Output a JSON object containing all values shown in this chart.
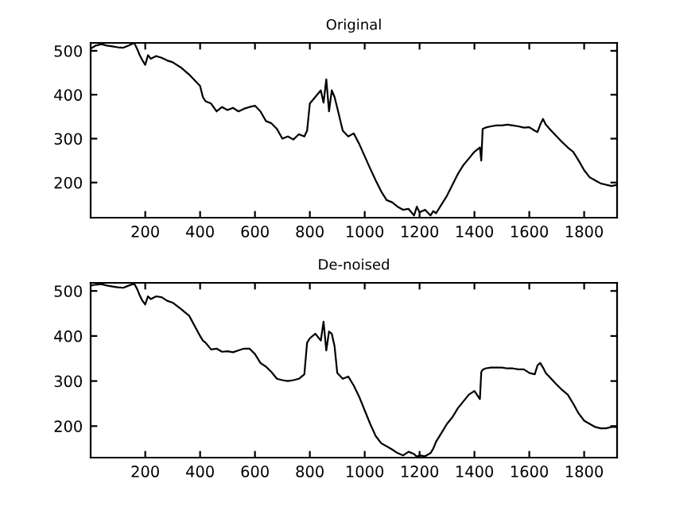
{
  "chart_data": [
    {
      "type": "line",
      "title": "Original",
      "xlim": [
        1,
        1920
      ],
      "ylim": [
        120,
        518
      ],
      "xticks": [
        200,
        400,
        600,
        800,
        1000,
        1200,
        1400,
        1600,
        1800
      ],
      "yticks": [
        200,
        300,
        400,
        500
      ],
      "grid": false,
      "legend": false,
      "marker": "none",
      "line_style": "solid",
      "series": [
        {
          "color": "#000000",
          "x": [
            1,
            20,
            40,
            60,
            80,
            100,
            120,
            140,
            160,
            170,
            180,
            190,
            200,
            210,
            220,
            240,
            260,
            280,
            300,
            330,
            360,
            400,
            410,
            420,
            440,
            460,
            480,
            500,
            520,
            540,
            560,
            580,
            600,
            620,
            640,
            660,
            680,
            700,
            720,
            740,
            760,
            780,
            790,
            800,
            820,
            840,
            850,
            860,
            870,
            880,
            890,
            900,
            920,
            940,
            960,
            980,
            1000,
            1020,
            1040,
            1060,
            1080,
            1100,
            1120,
            1140,
            1160,
            1180,
            1190,
            1200,
            1220,
            1240,
            1250,
            1260,
            1280,
            1300,
            1320,
            1340,
            1360,
            1380,
            1400,
            1420,
            1425,
            1430,
            1440,
            1460,
            1480,
            1500,
            1520,
            1540,
            1560,
            1580,
            1600,
            1620,
            1630,
            1640,
            1650,
            1660,
            1680,
            1700,
            1720,
            1740,
            1760,
            1780,
            1800,
            1820,
            1840,
            1860,
            1880,
            1900,
            1920
          ],
          "values": [
            505,
            512,
            515,
            512,
            510,
            508,
            507,
            512,
            518,
            505,
            490,
            478,
            468,
            490,
            482,
            488,
            484,
            478,
            474,
            462,
            446,
            420,
            395,
            385,
            380,
            362,
            372,
            365,
            370,
            362,
            368,
            372,
            375,
            362,
            340,
            335,
            322,
            300,
            305,
            298,
            310,
            305,
            318,
            380,
            395,
            410,
            382,
            435,
            362,
            410,
            395,
            370,
            318,
            305,
            312,
            288,
            260,
            232,
            205,
            180,
            160,
            155,
            145,
            138,
            140,
            125,
            145,
            132,
            138,
            125,
            135,
            130,
            150,
            170,
            195,
            220,
            240,
            255,
            270,
            280,
            250,
            322,
            325,
            328,
            330,
            330,
            332,
            330,
            328,
            325,
            326,
            318,
            315,
            332,
            345,
            332,
            318,
            305,
            292,
            280,
            270,
            250,
            228,
            212,
            205,
            198,
            195,
            192,
            195
          ]
        }
      ]
    },
    {
      "type": "line",
      "title": "De-noised",
      "xlim": [
        1,
        1920
      ],
      "ylim": [
        130,
        518
      ],
      "xticks": [
        200,
        400,
        600,
        800,
        1000,
        1200,
        1400,
        1600,
        1800
      ],
      "yticks": [
        200,
        300,
        400,
        500
      ],
      "grid": false,
      "legend": false,
      "marker": "none",
      "line_style": "solid",
      "series": [
        {
          "color": "#000000",
          "x": [
            1,
            20,
            40,
            60,
            80,
            100,
            120,
            140,
            160,
            170,
            180,
            190,
            200,
            210,
            220,
            240,
            260,
            280,
            300,
            330,
            360,
            400,
            410,
            420,
            440,
            460,
            480,
            500,
            520,
            540,
            560,
            580,
            600,
            620,
            640,
            660,
            680,
            700,
            720,
            740,
            760,
            780,
            790,
            800,
            820,
            840,
            850,
            860,
            870,
            880,
            890,
            900,
            920,
            940,
            960,
            980,
            1000,
            1020,
            1040,
            1060,
            1080,
            1100,
            1120,
            1140,
            1160,
            1180,
            1190,
            1200,
            1220,
            1240,
            1250,
            1260,
            1280,
            1300,
            1320,
            1340,
            1360,
            1380,
            1400,
            1420,
            1425,
            1430,
            1440,
            1460,
            1480,
            1500,
            1520,
            1540,
            1560,
            1580,
            1600,
            1620,
            1630,
            1640,
            1650,
            1660,
            1680,
            1700,
            1720,
            1740,
            1760,
            1780,
            1800,
            1820,
            1840,
            1860,
            1880,
            1900,
            1920
          ],
          "values": [
            512,
            514,
            515,
            512,
            510,
            508,
            507,
            512,
            516,
            505,
            490,
            478,
            470,
            488,
            482,
            488,
            486,
            478,
            474,
            460,
            445,
            400,
            390,
            385,
            370,
            372,
            365,
            366,
            364,
            368,
            372,
            372,
            360,
            340,
            332,
            320,
            305,
            302,
            300,
            302,
            305,
            315,
            385,
            395,
            405,
            390,
            432,
            368,
            410,
            405,
            378,
            318,
            305,
            310,
            290,
            265,
            235,
            205,
            178,
            162,
            155,
            148,
            140,
            135,
            143,
            138,
            132,
            135,
            133,
            140,
            150,
            165,
            185,
            205,
            220,
            240,
            255,
            270,
            278,
            260,
            320,
            325,
            328,
            330,
            330,
            330,
            328,
            328,
            326,
            326,
            318,
            315,
            335,
            340,
            330,
            318,
            305,
            292,
            280,
            270,
            250,
            228,
            212,
            205,
            198,
            195,
            195,
            198,
            198
          ]
        }
      ]
    }
  ]
}
